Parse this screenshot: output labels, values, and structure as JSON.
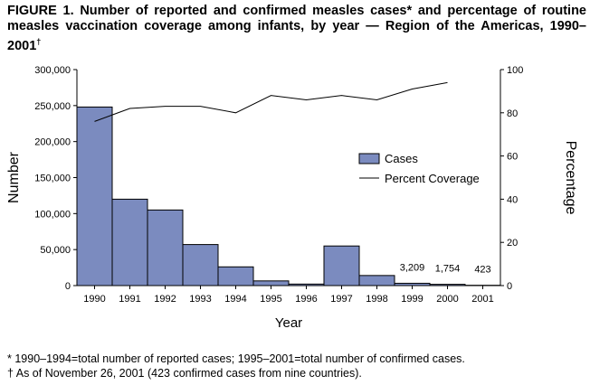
{
  "title": "FIGURE 1. Number of reported and confirmed measles cases* and percentage of routine measles vaccination coverage among infants, by year — Region of the Americas, 1990–2001",
  "title_mark": "†",
  "footnotes": [
    "* 1990–1994=total number of reported cases; 1995–2001=total number of confirmed cases.",
    "† As of November 26, 2001 (423 confirmed cases from nine countries)."
  ],
  "chart_data": {
    "type": "bar",
    "xlabel": "Year",
    "ylabel": "Number",
    "y2label": "Percentage",
    "categories": [
      "1990",
      "1991",
      "1992",
      "1993",
      "1994",
      "1995",
      "1996",
      "1997",
      "1998",
      "1999",
      "2000",
      "2001"
    ],
    "ylim": [
      0,
      300000
    ],
    "yticks": [
      "0",
      "50,000",
      "100,000",
      "150,000",
      "200,000",
      "250,000",
      "300,000"
    ],
    "y2lim": [
      0,
      100
    ],
    "y2ticks": [
      "0",
      "20",
      "40",
      "60",
      "80",
      "100"
    ],
    "legend_position": "right-center",
    "grid": false,
    "series": [
      {
        "name": "Cases",
        "type": "bar",
        "color": "#7b8bbf",
        "values": [
          248000,
          120000,
          105000,
          57000,
          26000,
          6500,
          2100,
          55000,
          14000,
          3209,
          1754,
          423
        ],
        "labels": [
          null,
          null,
          null,
          null,
          null,
          null,
          null,
          null,
          null,
          "3,209",
          "1,754",
          "423"
        ]
      },
      {
        "name": "Percent Coverage",
        "type": "line",
        "axis": "right",
        "color": "#000000",
        "values": [
          76,
          82,
          83,
          83,
          80,
          88,
          86,
          88,
          86,
          91,
          94,
          null
        ]
      }
    ]
  }
}
